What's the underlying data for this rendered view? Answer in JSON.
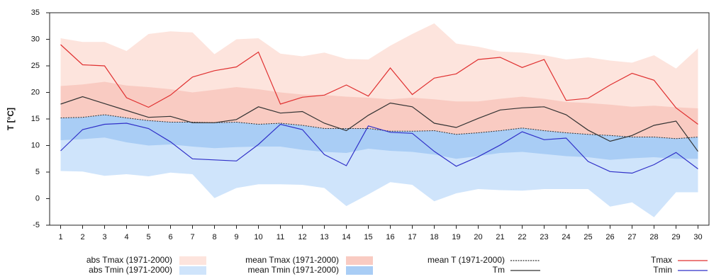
{
  "chart_data": {
    "type": "line",
    "y_label": "T [°C]",
    "x": [
      1,
      2,
      3,
      4,
      5,
      6,
      7,
      8,
      9,
      10,
      11,
      12,
      13,
      14,
      15,
      16,
      17,
      18,
      19,
      20,
      21,
      22,
      23,
      24,
      25,
      26,
      27,
      28,
      29,
      30
    ],
    "xlim": [
      0.5,
      30.5
    ],
    "xticks": [
      1,
      2,
      3,
      4,
      5,
      6,
      7,
      8,
      9,
      10,
      11,
      12,
      13,
      14,
      15,
      16,
      17,
      18,
      19,
      20,
      21,
      22,
      23,
      24,
      25,
      26,
      27,
      28,
      29,
      30
    ],
    "ylim": [
      -5,
      35
    ],
    "yticks": [
      -5,
      0,
      5,
      10,
      15,
      20,
      25,
      30,
      35
    ],
    "series": [
      {
        "name": "abs Tmax (1971-2000)",
        "style": "area",
        "color": "#fde4dd",
        "values": [
          30.2,
          29.5,
          29.5,
          27.8,
          31,
          31.5,
          31.3,
          27.2,
          30,
          30.2,
          27.3,
          26.8,
          27.5,
          26.3,
          26.2,
          28.8,
          31,
          33,
          29.2,
          28.6,
          27.7,
          27.5,
          27,
          26.2,
          26.6,
          26,
          25.6,
          27,
          24.5,
          28.3
        ]
      },
      {
        "name": "abs Tmin (1971-2000)",
        "style": "area",
        "color": "#cfe4fb",
        "values": [
          5.2,
          5.1,
          4.3,
          4.6,
          4.2,
          4.9,
          4.6,
          0.1,
          2,
          2.7,
          2.7,
          2.6,
          2,
          -1.4,
          0.8,
          3.1,
          2.6,
          -0.5,
          1,
          1.8,
          1.6,
          1.5,
          1.8,
          1.8,
          1.8,
          -1.5,
          -0.7,
          -3.5,
          1.2,
          1.2
        ]
      },
      {
        "name": "mean Tmax (1971-2000)",
        "style": "area",
        "color": "#f9cbc2",
        "values": [
          21.2,
          21.5,
          22,
          21.3,
          21,
          20.6,
          20,
          20.5,
          21,
          20.6,
          20,
          19.6,
          19.5,
          19.2,
          19,
          18.7,
          19,
          18.7,
          18.3,
          18.3,
          18.8,
          19.2,
          18.8,
          18.2,
          18,
          17.7,
          17.3,
          17.5,
          17.2,
          17
        ]
      },
      {
        "name": "mean Tmin (1971-2000)",
        "style": "area",
        "color": "#a9cdf5",
        "values": [
          11,
          11.2,
          11.5,
          10.6,
          10,
          10.2,
          9.8,
          9.5,
          9.7,
          9.8,
          9.8,
          9.2,
          8.8,
          8.6,
          9.4,
          9,
          8.8,
          8.3,
          7.5,
          8,
          8.6,
          8.8,
          8.4,
          8,
          7.8,
          7.3,
          7.6,
          7.8,
          7.5,
          7.5
        ]
      },
      {
        "name": "mean T (1971-2000)",
        "style": "dashed",
        "color": "#333333",
        "values": [
          15.2,
          15.3,
          15.8,
          15.2,
          14.7,
          14.4,
          14.4,
          14.3,
          14.4,
          14,
          14.2,
          13.8,
          13.2,
          13.2,
          13.2,
          12.7,
          12.7,
          12.8,
          12.1,
          12.4,
          12.8,
          13.3,
          12.8,
          12.4,
          12.1,
          11.9,
          11.6,
          11.6,
          11.3,
          11.6
        ]
      },
      {
        "name": "Tm",
        "style": "line",
        "color": "#333333",
        "values": [
          17.8,
          19.2,
          17.9,
          16.6,
          15.3,
          15.5,
          14.3,
          14.3,
          14.9,
          17.3,
          16.1,
          16.4,
          14.2,
          12.8,
          15.7,
          18,
          17.3,
          14.2,
          13.4,
          15.1,
          16.7,
          17.1,
          17.3,
          15.8,
          12.9,
          10.8,
          11.9,
          13.8,
          14.6,
          8.9
        ]
      },
      {
        "name": "Tmax",
        "style": "line",
        "color": "#e03030",
        "values": [
          29,
          25.2,
          25,
          19,
          17.2,
          19.5,
          22.9,
          24.1,
          24.8,
          27.6,
          17.8,
          19.1,
          19.5,
          21.4,
          19.3,
          24.6,
          19.6,
          22.7,
          23.5,
          26.2,
          26.6,
          24.7,
          26.2,
          18.5,
          18.9,
          21.4,
          23.6,
          22.3,
          17.1,
          14
        ]
      },
      {
        "name": "Tmin",
        "style": "line",
        "color": "#3030c8",
        "values": [
          9,
          13,
          14,
          14.2,
          13.2,
          10.7,
          7.5,
          7.3,
          7.1,
          10.2,
          14,
          13,
          8.3,
          6.2,
          13.7,
          12.5,
          12.3,
          8.9,
          6.1,
          7.9,
          10.1,
          12.6,
          11.1,
          11.4,
          7,
          5.1,
          4.8,
          6.4,
          8.7,
          5.6
        ]
      }
    ]
  }
}
